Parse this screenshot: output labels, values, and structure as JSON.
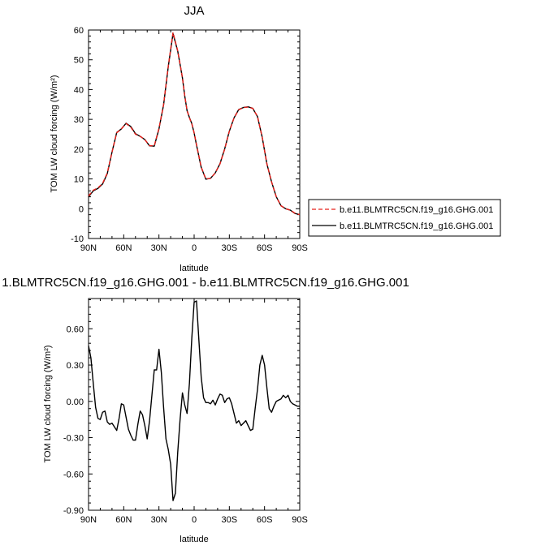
{
  "chart_data": [
    {
      "type": "line",
      "title": "JJA",
      "xlabel": "latitude",
      "ylabel": "TOM LW cloud forcing (W/m²)",
      "x_tick_labels": [
        "90N",
        "60N",
        "30N",
        "0",
        "30S",
        "60S",
        "90S"
      ],
      "x_tick_values": [
        90,
        60,
        30,
        0,
        -30,
        -60,
        -90
      ],
      "xlim": [
        90,
        -90
      ],
      "ylim": [
        -10,
        60
      ],
      "y_tick_labels": [
        "-10",
        "0",
        "10",
        "20",
        "30",
        "40",
        "50",
        "60"
      ],
      "y_tick_values": [
        -10,
        0,
        10,
        20,
        30,
        40,
        50,
        60
      ],
      "legend": {
        "position": "right"
      },
      "series": [
        {
          "name": "b.e11.BLMTRC5CN.f19_g16.GHG.001",
          "color": "#e8201a",
          "dash": "dashed",
          "x": [
            90,
            86,
            82,
            78,
            74,
            70,
            66,
            62,
            58,
            54,
            50,
            46,
            42,
            38,
            34,
            30,
            26,
            22,
            18,
            14,
            10,
            8,
            6,
            4,
            2,
            0,
            -2,
            -6,
            -10,
            -14,
            -18,
            -22,
            -26,
            -30,
            -34,
            -38,
            -42,
            -46,
            -50,
            -54,
            -58,
            -62,
            -66,
            -70,
            -74,
            -78,
            -82,
            -86,
            -90
          ],
          "y": [
            4.3,
            6.2,
            7,
            8.5,
            12,
            19,
            25.5,
            26.8,
            28.6,
            27.4,
            25,
            24.3,
            23.2,
            21.2,
            21.1,
            27,
            35,
            48,
            59.2,
            53,
            44,
            38,
            33,
            30.5,
            28.5,
            25.5,
            21.5,
            14,
            10,
            10.2,
            12,
            15,
            20,
            26,
            30.5,
            33.2,
            34,
            34.1,
            33.7,
            31,
            24,
            15,
            9,
            4,
            1,
            0,
            -0.5,
            -1.5,
            -2
          ]
        },
        {
          "name": "b.e11.BLMTRC5CN.f19_g16.GHG.001",
          "color": "#000000",
          "dash": "solid",
          "x": [
            90,
            86,
            82,
            78,
            74,
            70,
            66,
            62,
            58,
            54,
            50,
            46,
            42,
            38,
            34,
            30,
            26,
            22,
            18,
            14,
            10,
            8,
            6,
            4,
            2,
            0,
            -2,
            -6,
            -10,
            -14,
            -18,
            -22,
            -26,
            -30,
            -34,
            -38,
            -42,
            -46,
            -50,
            -54,
            -58,
            -62,
            -66,
            -70,
            -74,
            -78,
            -82,
            -86,
            -90
          ],
          "y": [
            4,
            6,
            6.8,
            8.3,
            11.8,
            19,
            25.6,
            26.8,
            28.7,
            27.6,
            25.2,
            24.3,
            23.2,
            21.1,
            21,
            26.8,
            34.9,
            47.8,
            58.8,
            52.9,
            43.9,
            37.9,
            32.9,
            30.6,
            28.6,
            25.4,
            21.4,
            13.9,
            9.9,
            10.2,
            12,
            15.1,
            20.1,
            26,
            30.5,
            33.3,
            34,
            34.2,
            33.7,
            30.9,
            24,
            15,
            9,
            4,
            1,
            0,
            -0.5,
            -1.6,
            -2
          ]
        }
      ]
    },
    {
      "type": "line",
      "title": "1.BLMTRC5CN.f19_g16.GHG.001 - b.e11.BLMTRC5CN.f19_g16.GHG.001",
      "xlabel": "latitude",
      "ylabel": "TOM LW cloud forcing (W/m²)",
      "x_tick_labels": [
        "90N",
        "60N",
        "30N",
        "0",
        "30S",
        "60S",
        "90S"
      ],
      "x_tick_values": [
        90,
        60,
        30,
        0,
        -30,
        -60,
        -90
      ],
      "xlim": [
        90,
        -90
      ],
      "ylim": [
        -0.9,
        0.85
      ],
      "y_tick_labels": [
        "0.60",
        "0.30",
        "0.00",
        "-0.30",
        "-0.60",
        "-0.90"
      ],
      "y_tick_values": [
        0.6,
        0.3,
        0.0,
        -0.3,
        -0.6,
        -0.9
      ],
      "series": [
        {
          "color": "#000000",
          "dash": "solid",
          "x": [
            90,
            88,
            86,
            84,
            82,
            80,
            78,
            76,
            74,
            72,
            70,
            68,
            66,
            64,
            62,
            60,
            58,
            56,
            54,
            52,
            50,
            48,
            46,
            44,
            42,
            40,
            38,
            36,
            34,
            32,
            30,
            28,
            26,
            24,
            22,
            20,
            18,
            16,
            14,
            12,
            10,
            8,
            6,
            4,
            2,
            0,
            -2,
            -4,
            -6,
            -8,
            -10,
            -12,
            -14,
            -16,
            -18,
            -20,
            -22,
            -24,
            -26,
            -28,
            -30,
            -32,
            -34,
            -36,
            -38,
            -40,
            -42,
            -44,
            -46,
            -48,
            -50,
            -52,
            -54,
            -56,
            -58,
            -60,
            -62,
            -64,
            -66,
            -68,
            -70,
            -72,
            -74,
            -76,
            -78,
            -80,
            -82,
            -84,
            -86,
            -88,
            -90
          ],
          "y": [
            0.46,
            0.36,
            0.15,
            -0.05,
            -0.14,
            -0.15,
            -0.09,
            -0.08,
            -0.17,
            -0.19,
            -0.18,
            -0.21,
            -0.24,
            -0.14,
            -0.02,
            -0.03,
            -0.13,
            -0.23,
            -0.28,
            -0.32,
            -0.32,
            -0.19,
            -0.08,
            -0.11,
            -0.2,
            -0.31,
            -0.16,
            0.05,
            0.26,
            0.26,
            0.43,
            0.24,
            -0.05,
            -0.31,
            -0.4,
            -0.52,
            -0.82,
            -0.76,
            -0.42,
            -0.15,
            0.07,
            -0.03,
            -0.1,
            0.15,
            0.52,
            0.82,
            0.83,
            0.51,
            0.2,
            0.03,
            -0.01,
            -0.01,
            -0.02,
            0.01,
            -0.03,
            0.02,
            0.06,
            0.05,
            -0.01,
            0.02,
            0.03,
            -0.02,
            -0.1,
            -0.18,
            -0.16,
            -0.2,
            -0.18,
            -0.16,
            -0.2,
            -0.24,
            -0.23,
            -0.06,
            0.1,
            0.3,
            0.38,
            0.3,
            0.11,
            -0.06,
            -0.09,
            -0.04,
            0.0,
            0.01,
            0.02,
            0.05,
            0.03,
            0.05,
            0.0,
            -0.02,
            -0.03,
            -0.04,
            -0.04
          ]
        }
      ]
    }
  ]
}
